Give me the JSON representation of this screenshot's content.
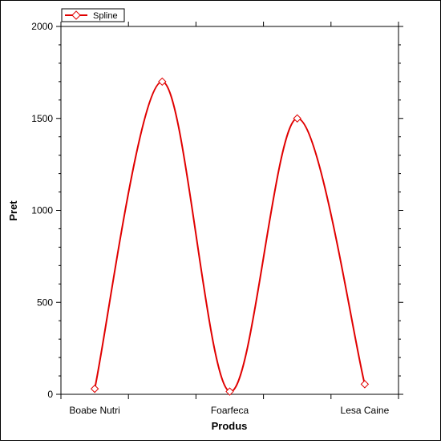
{
  "chart_data": {
    "type": "line",
    "smooth": true,
    "categories": [
      "Boabe Nutri",
      "",
      "",
      "Foarfeca",
      "",
      "Lesa Caine"
    ],
    "x": [
      1,
      2,
      3,
      4,
      5,
      6
    ],
    "series": [
      {
        "name": "Spline",
        "values": [
          30,
          1700,
          15,
          1500,
          55
        ],
        "x": [
          1,
          2,
          3,
          4,
          5
        ],
        "color": "#e00000",
        "marker": "diamond"
      }
    ],
    "xlabel": "Produs",
    "ylabel": "Pret",
    "ylim": [
      0,
      2000
    ],
    "yticks": [
      0,
      500,
      1000,
      1500,
      2000
    ],
    "ytick_labels": [
      "0",
      "500",
      "1000",
      "1500",
      "2000"
    ],
    "xtick_labels": [
      "Boabe Nutri",
      "Foarfeca",
      "Lesa Caine"
    ],
    "xtick_label_positions": [
      0.5,
      2.5,
      4.5
    ],
    "legend": {
      "placement": "top-left",
      "entries": [
        "Spline"
      ]
    },
    "grid": false
  }
}
